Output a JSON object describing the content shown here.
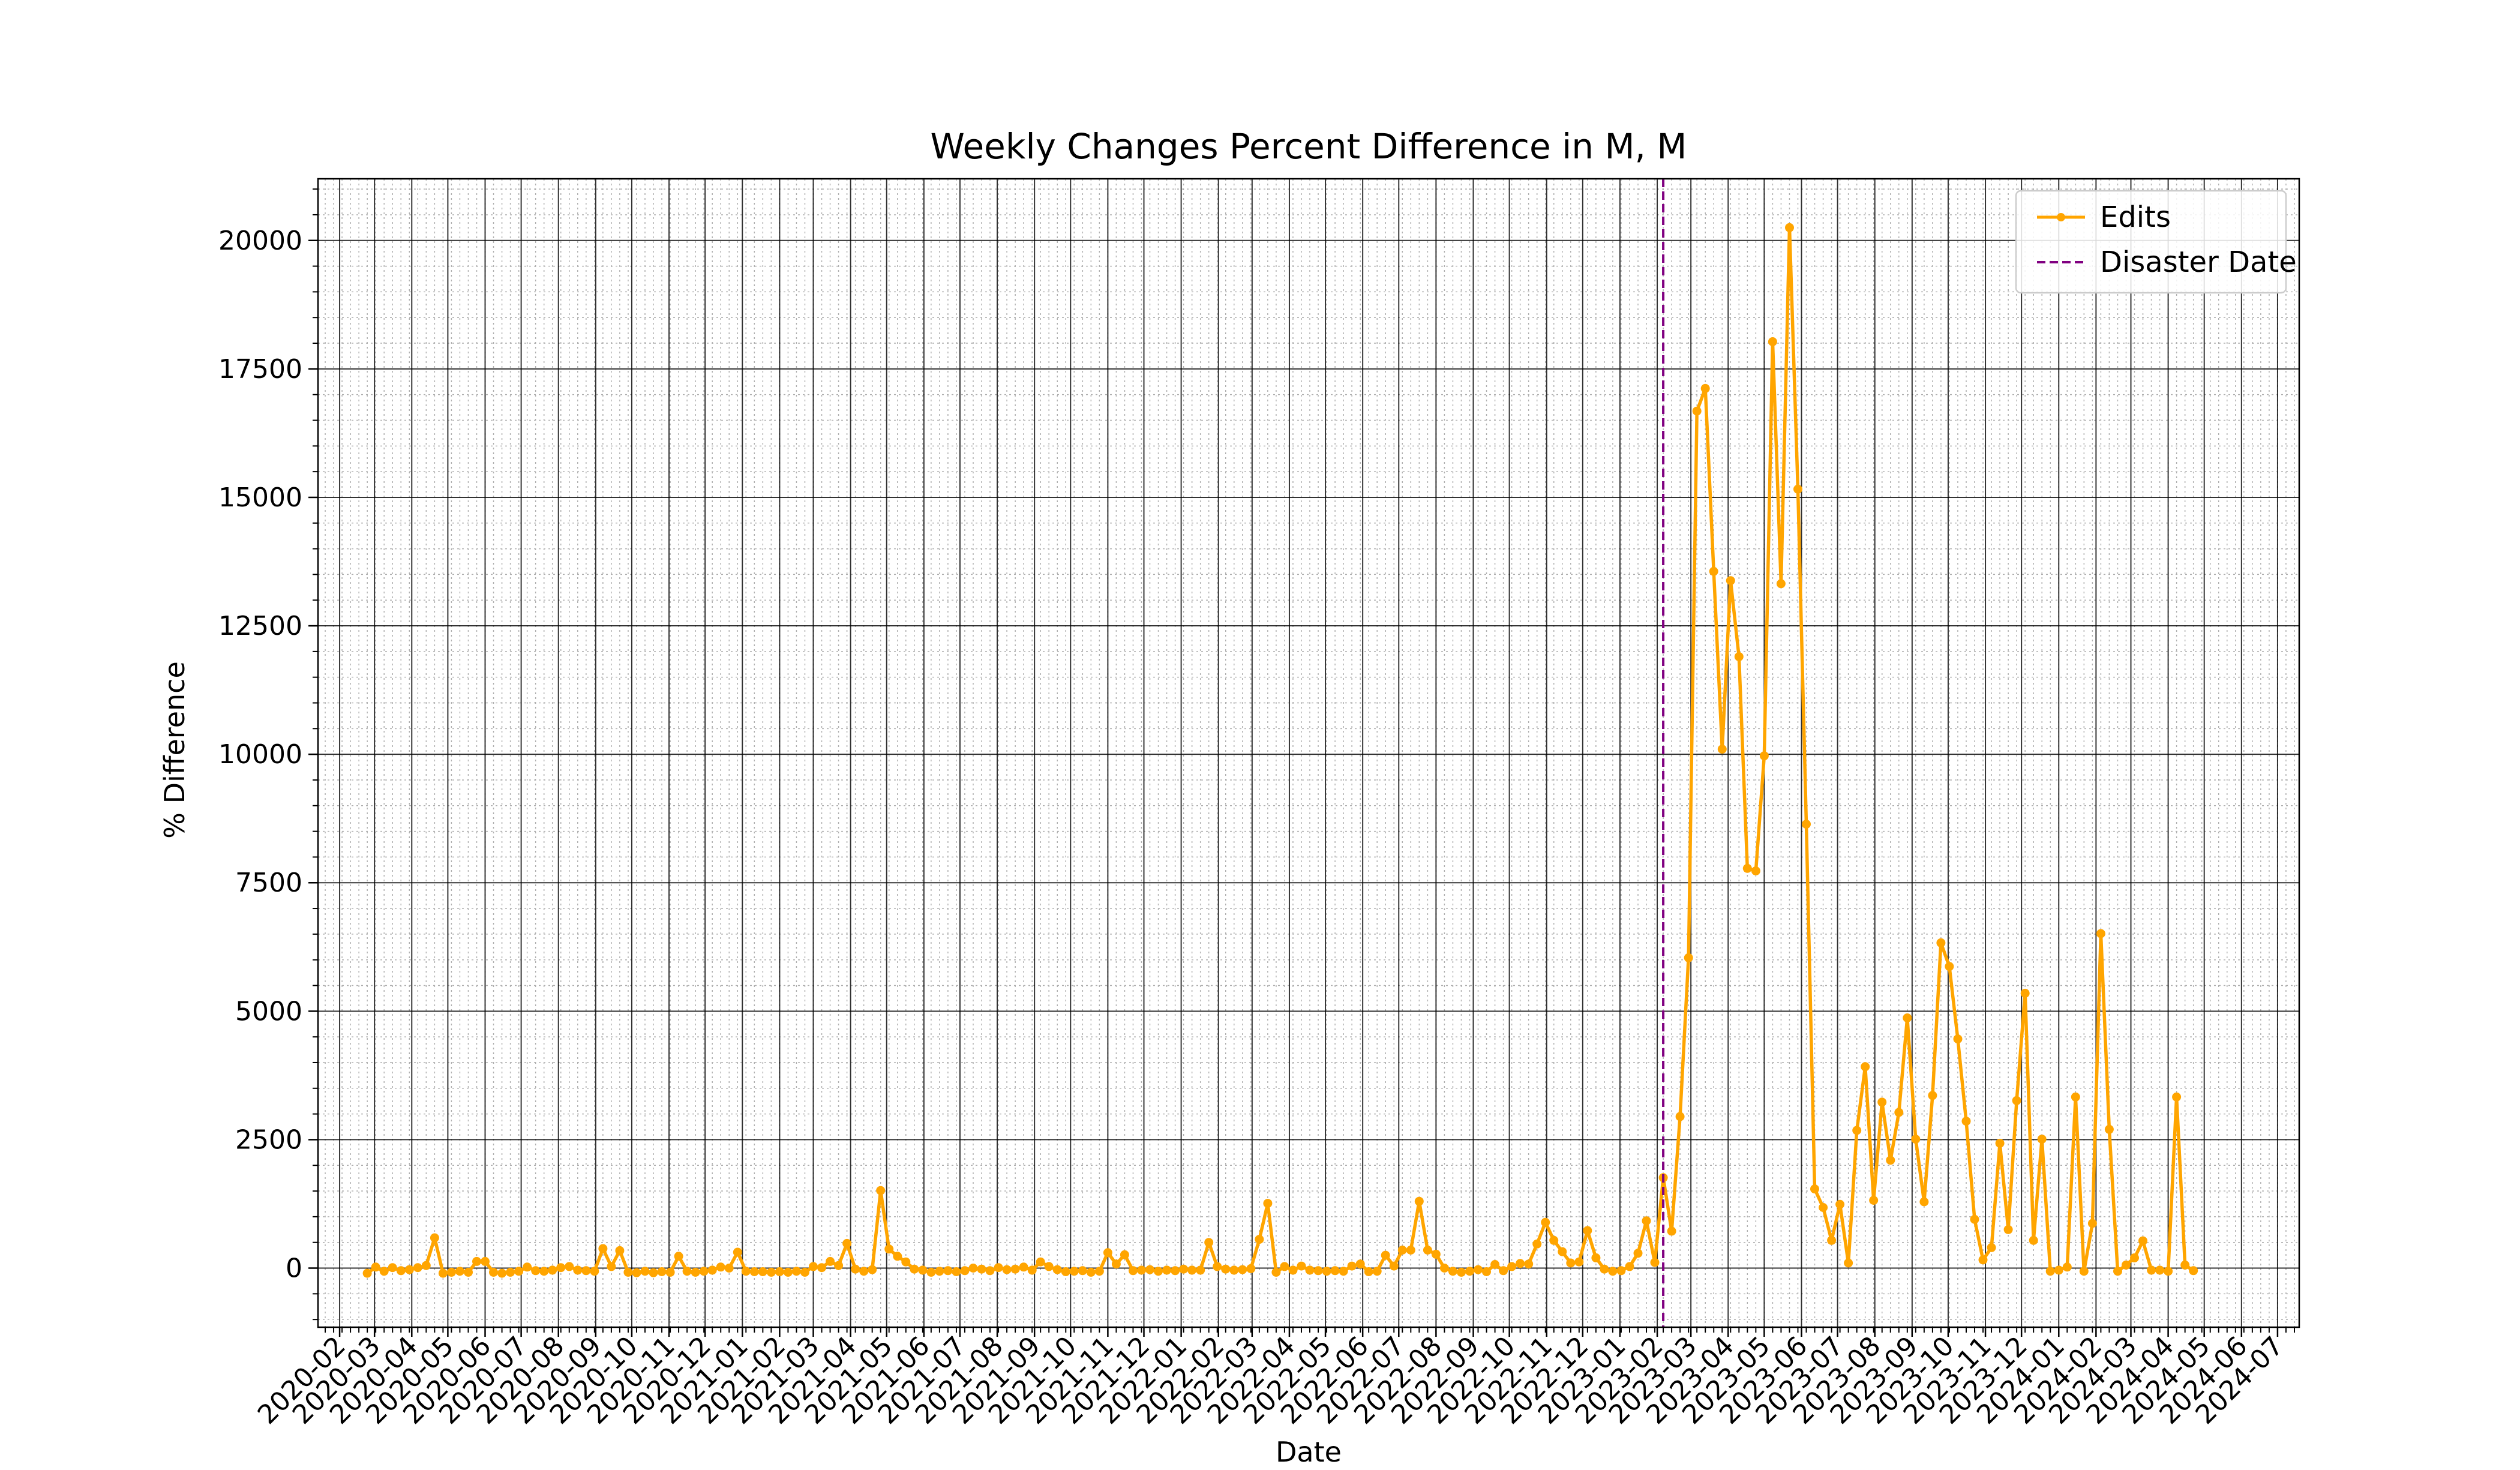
{
  "chart_data": {
    "type": "line",
    "title": "Weekly Changes Percent Difference in M, M",
    "xlabel": "Date",
    "ylabel": "% Difference",
    "x_range": [
      "2020-01-14",
      "2024-07-19"
    ],
    "ylim": [
      -1150,
      21200
    ],
    "yticks": [
      0,
      2500,
      5000,
      7500,
      10000,
      12500,
      15000,
      17500,
      20000
    ],
    "xticks": [
      "2020-02",
      "2020-03",
      "2020-04",
      "2020-05",
      "2020-06",
      "2020-07",
      "2020-08",
      "2020-09",
      "2020-10",
      "2020-11",
      "2020-12",
      "2021-01",
      "2021-02",
      "2021-03",
      "2021-04",
      "2021-05",
      "2021-06",
      "2021-07",
      "2021-08",
      "2021-09",
      "2021-10",
      "2021-11",
      "2021-12",
      "2022-01",
      "2022-02",
      "2022-03",
      "2022-04",
      "2022-05",
      "2022-06",
      "2022-07",
      "2022-08",
      "2022-09",
      "2022-10",
      "2022-11",
      "2022-12",
      "2023-01",
      "2023-02",
      "2023-03",
      "2023-04",
      "2023-05",
      "2023-06",
      "2023-07",
      "2023-08",
      "2023-09",
      "2023-10",
      "2023-11",
      "2023-12",
      "2024-01",
      "2024-02",
      "2024-03",
      "2024-04",
      "2024-05",
      "2024-06",
      "2024-07"
    ],
    "grid": "major and minor",
    "legend": {
      "placement": "top-right",
      "entries": [
        {
          "label": "Edits",
          "style": "line-marker",
          "color": "#FFA500"
        },
        {
          "label": "Disaster Date",
          "style": "dashed",
          "color": "#800080"
        }
      ]
    },
    "disaster_date": "2023-02-06",
    "series": [
      {
        "name": "Edits",
        "color": "#FFA500",
        "start": "2020-02-24",
        "step_days": 7,
        "values": [
          -100,
          20,
          -60,
          10,
          -50,
          -30,
          10,
          50,
          590,
          -100,
          -80,
          -60,
          -80,
          130,
          130,
          -80,
          -100,
          -80,
          -60,
          20,
          -50,
          -60,
          -40,
          10,
          30,
          -40,
          -50,
          -60,
          380,
          30,
          340,
          -80,
          -90,
          -60,
          -90,
          -70,
          -80,
          230,
          -60,
          -80,
          -60,
          -40,
          20,
          0,
          310,
          -60,
          -70,
          -70,
          -80,
          -70,
          -80,
          -60,
          -80,
          30,
          10,
          130,
          50,
          480,
          -20,
          -60,
          -30,
          1510,
          370,
          230,
          120,
          -20,
          -40,
          -80,
          -60,
          -50,
          -70,
          -50,
          0,
          -20,
          -50,
          10,
          -30,
          -20,
          20,
          -40,
          120,
          30,
          -30,
          -70,
          -60,
          -50,
          -80,
          -60,
          300,
          80,
          260,
          -50,
          -40,
          -30,
          -60,
          -40,
          -50,
          -20,
          -40,
          -40,
          500,
          30,
          -20,
          -40,
          -30,
          -10,
          560,
          1260,
          -80,
          30,
          -40,
          40,
          -40,
          -50,
          -60,
          -50,
          -60,
          40,
          80,
          -70,
          -60,
          250,
          40,
          350,
          350,
          1300,
          350,
          270,
          0,
          -60,
          -80,
          -60,
          -30,
          -70,
          70,
          -50,
          30,
          90,
          80,
          470,
          890,
          540,
          320,
          100,
          120,
          730,
          200,
          -20,
          -60,
          -50,
          30,
          290,
          920,
          110,
          1760,
          720,
          2950,
          6040,
          16680,
          17120,
          13560,
          10100,
          13380,
          11900,
          7780,
          7730,
          9970,
          18030,
          13320,
          20250,
          15160,
          8640,
          1540,
          1180,
          540,
          1240,
          100,
          2680,
          3920,
          1320,
          3230,
          2100,
          3030,
          4870,
          2510,
          1290,
          3360,
          6330,
          5870,
          4460,
          2860,
          950,
          160,
          400,
          2430,
          750,
          3260,
          5350,
          540,
          2510,
          -60,
          -40,
          20,
          3330,
          -60,
          870,
          6510,
          2700,
          -60,
          60,
          200,
          530,
          -40,
          -40,
          -60,
          3330,
          60,
          -50
        ]
      }
    ]
  }
}
